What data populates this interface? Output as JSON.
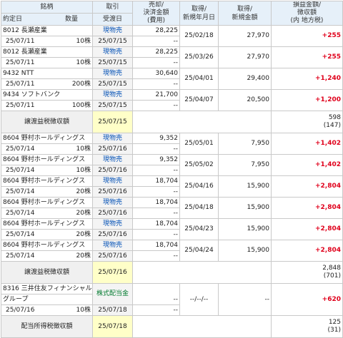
{
  "header": {
    "stock": "銘柄",
    "contract_date": "約定日",
    "quantity": "数量",
    "trade": "取引",
    "settle_date": "受渡日",
    "sell_amount": "売却/\n決済金額\n(費用)",
    "acq_date": "取得/\n新規年月日",
    "acq_amount": "取得/\n新規金額",
    "pl": "損益金額/\n徴収額\n(内 地方税)"
  },
  "rows": [
    {
      "code": "8012 長瀬産業",
      "date": "25/07/11",
      "qty": "10株",
      "trade": "現物売",
      "settle": "25/07/15",
      "sell": "28,225",
      "fee": "--",
      "acq_date": "25/02/18",
      "acq_amt": "27,970",
      "pl": "+255"
    },
    {
      "code": "8012 長瀬産業",
      "date": "25/07/11",
      "qty": "10株",
      "trade": "現物売",
      "settle": "25/07/15",
      "sell": "28,225",
      "fee": "--",
      "acq_date": "25/03/26",
      "acq_amt": "27,970",
      "pl": "+255"
    },
    {
      "code": "9432 NTT",
      "date": "25/07/11",
      "qty": "200株",
      "trade": "現物売",
      "settle": "25/07/15",
      "sell": "30,640",
      "fee": "--",
      "acq_date": "25/04/01",
      "acq_amt": "29,400",
      "pl": "+1,240"
    },
    {
      "code": "9434 ソフトバンク",
      "date": "25/07/11",
      "qty": "100株",
      "trade": "現物売",
      "settle": "25/07/15",
      "sell": "21,700",
      "fee": "--",
      "acq_date": "25/04/07",
      "acq_amt": "20,500",
      "pl": "+1,200"
    }
  ],
  "tax1": {
    "label": "譲渡益税徴収額",
    "date": "25/07/15",
    "amount": "598",
    "local": "(147)"
  },
  "rows2": [
    {
      "code": "8604 野村ホールディングス",
      "date": "25/07/14",
      "qty": "10株",
      "trade": "現物売",
      "settle": "25/07/16",
      "sell": "9,352",
      "fee": "--",
      "acq_date": "25/05/01",
      "acq_amt": "7,950",
      "pl": "+1,402"
    },
    {
      "code": "8604 野村ホールディングス",
      "date": "25/07/14",
      "qty": "10株",
      "trade": "現物売",
      "settle": "25/07/16",
      "sell": "9,352",
      "fee": "--",
      "acq_date": "25/05/02",
      "acq_amt": "7,950",
      "pl": "+1,402"
    },
    {
      "code": "8604 野村ホールディングス",
      "date": "25/07/14",
      "qty": "20株",
      "trade": "現物売",
      "settle": "25/07/16",
      "sell": "18,704",
      "fee": "--",
      "acq_date": "25/04/16",
      "acq_amt": "15,900",
      "pl": "+2,804"
    },
    {
      "code": "8604 野村ホールディングス",
      "date": "25/07/14",
      "qty": "20株",
      "trade": "現物売",
      "settle": "25/07/16",
      "sell": "18,704",
      "fee": "--",
      "acq_date": "25/04/18",
      "acq_amt": "15,900",
      "pl": "+2,804"
    },
    {
      "code": "8604 野村ホールディングス",
      "date": "25/07/14",
      "qty": "20株",
      "trade": "現物売",
      "settle": "25/07/16",
      "sell": "18,704",
      "fee": "--",
      "acq_date": "25/04/23",
      "acq_amt": "15,900",
      "pl": "+2,804"
    },
    {
      "code": "8604 野村ホールディングス",
      "date": "25/07/14",
      "qty": "20株",
      "trade": "現物売",
      "settle": "25/07/16",
      "sell": "18,704",
      "fee": "--",
      "acq_date": "25/04/24",
      "acq_amt": "15,900",
      "pl": "+2,804"
    }
  ],
  "tax2": {
    "label": "譲渡益税徴収額",
    "date": "25/07/16",
    "amount": "2,848",
    "local": "(701)"
  },
  "dividend": {
    "code": "8316 三井住友フィナンシャル",
    "code2": "グループ",
    "date": "25/07/16",
    "qty": "10株",
    "trade": "株式配当金",
    "settle": "25/07/18",
    "sell": "--",
    "fee": "--",
    "acq_date": "--/--/--",
    "acq_amt": "--",
    "pl": "+620"
  },
  "tax3": {
    "label": "配当所得税徴収額",
    "date": "25/07/18",
    "amount": "125",
    "local": "(31)"
  }
}
